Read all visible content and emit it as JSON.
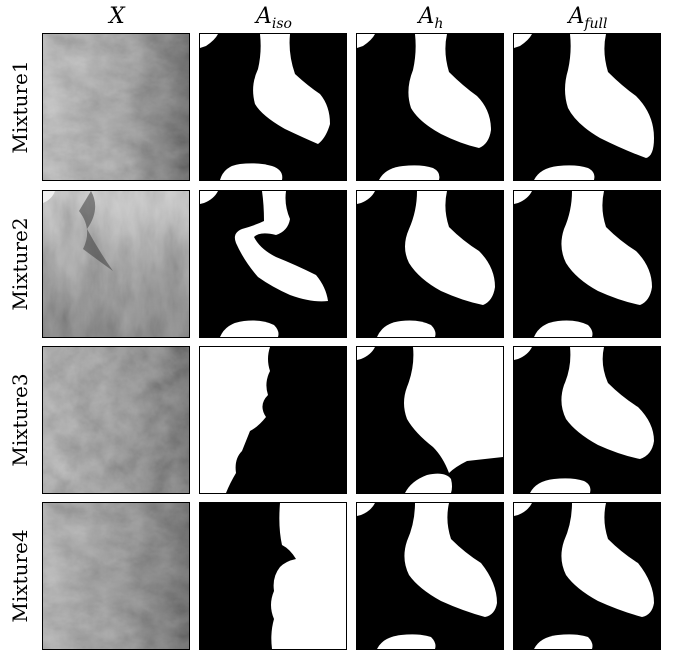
{
  "columns": [
    {
      "id": "X",
      "main": "X",
      "sub": ""
    },
    {
      "id": "A_iso",
      "main": "A",
      "sub": "iso"
    },
    {
      "id": "A_h",
      "main": "A",
      "sub": "h"
    },
    {
      "id": "A_full",
      "main": "A",
      "sub": "full"
    }
  ],
  "rows": [
    {
      "id": "mixture1",
      "label": "Mixture1"
    },
    {
      "id": "mixture2",
      "label": "Mixture2"
    },
    {
      "id": "mixture3",
      "label": "Mixture3"
    },
    {
      "id": "mixture4",
      "label": "Mixture4"
    }
  ],
  "colors": {
    "background": "#ffffff",
    "mask_foreground": "#ffffff",
    "mask_background": "#000000",
    "texture_light": "#c8c8c8",
    "texture_dark": "#1a1a1a"
  }
}
